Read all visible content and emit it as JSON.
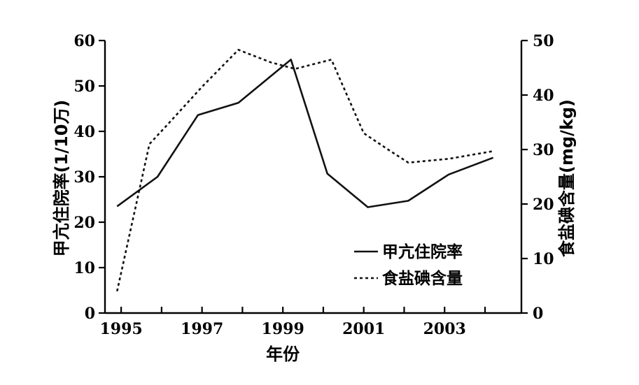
{
  "chart_data": {
    "type": "line",
    "xlabel": "年份",
    "ylabel": "甲亢住院率(1/10万)",
    "y2label": "食盐碘含量(mg/kg)",
    "xlim": [
      1994.6,
      2004.9
    ],
    "ylim": [
      0,
      60
    ],
    "y2lim": [
      0,
      50
    ],
    "x_ticks": [
      1995,
      1996,
      1997,
      1998,
      1999,
      2000,
      2001,
      2002,
      2003,
      2004
    ],
    "x_tick_labels": [
      "1995",
      "1997",
      "1999",
      "2001",
      "2003"
    ],
    "x_tick_label_values": [
      1995,
      1997,
      1999,
      2001,
      2003
    ],
    "y_ticks": [
      0,
      10,
      20,
      30,
      40,
      50,
      60
    ],
    "y_tick_labels": [
      "0",
      "10",
      "20",
      "30",
      "40",
      "50",
      "60"
    ],
    "y2_ticks": [
      0,
      10,
      20,
      30,
      40,
      50
    ],
    "y2_tick_labels": [
      "0",
      "10",
      "20",
      "30",
      "40",
      "50"
    ],
    "legend_position": "bottom-right",
    "series": [
      {
        "name": "甲亢住院率",
        "axis": "left",
        "style": "solid",
        "x": [
          1994.9,
          1995.9,
          1996.9,
          1997.9,
          1999.2,
          2000.1,
          2001.1,
          2002.1,
          2003.1,
          2004.2
        ],
        "values": [
          23.5,
          30,
          43.6,
          46.3,
          55.8,
          30.7,
          23.3,
          24.7,
          30.5,
          34.2
        ]
      },
      {
        "name": "食盐碘含量",
        "axis": "right",
        "style": "dashed",
        "x": [
          1994.9,
          1995.7,
          1996.2,
          1997,
          1997.9,
          1998.7,
          1999.3,
          2000.2,
          2001,
          2001.6,
          2002.1,
          2003.1,
          2004.2
        ],
        "values": [
          4,
          31,
          35,
          41.5,
          48.3,
          46,
          44.8,
          46.5,
          33,
          30,
          27.6,
          28.3,
          29.7
        ]
      }
    ]
  }
}
